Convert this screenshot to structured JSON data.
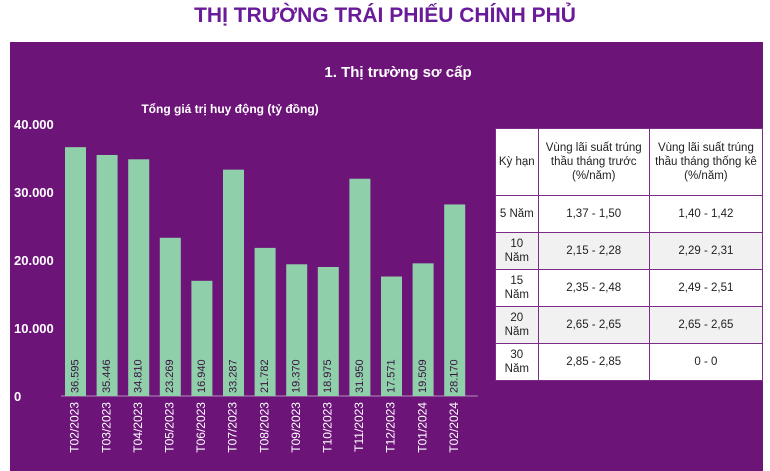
{
  "page_title": "THỊ TRƯỜNG TRÁI PHIẾU CHÍNH PHỦ",
  "section_title": "1. Thị trường sơ cấp",
  "colors": {
    "bar": "#8fcfaa",
    "panel": "#6d1479",
    "title": "#6a1b9a"
  },
  "chart_data": {
    "type": "bar",
    "title": "Tổng giá trị huy động (tỷ đồng)",
    "categories": [
      "T02/2023",
      "T03/2023",
      "T04/2023",
      "T05/2023",
      "T06/2023",
      "T07/2023",
      "T08/2023",
      "T09/2023",
      "T10/2023",
      "T11/2023",
      "T12/2023",
      "T01/2024",
      "T02/2024"
    ],
    "values": [
      36595,
      35446,
      34810,
      23269,
      16940,
      33287,
      21782,
      19370,
      18975,
      31950,
      17571,
      19509,
      28170
    ],
    "value_labels": [
      "36.595",
      "35.446",
      "34.810",
      "23.269",
      "16.940",
      "33.287",
      "21.782",
      "19.370",
      "18.975",
      "31.950",
      "17.571",
      "19.509",
      "28.170"
    ],
    "ylim": [
      0,
      40000
    ],
    "yticks": [
      0,
      10000,
      20000,
      30000,
      40000
    ],
    "ytick_labels": [
      "0",
      "10.000",
      "20.000",
      "30.000",
      "40.000"
    ],
    "grid": false
  },
  "table": {
    "headers": [
      "Kỳ hạn",
      "Vùng lãi suất trúng thầu tháng trước (%/năm)",
      "Vùng lãi suất trúng thầu tháng thống kê (%/năm)"
    ],
    "rows": [
      [
        "5 Năm",
        "1,37 - 1,50",
        "1,40 - 1,42"
      ],
      [
        "10 Năm",
        "2,15 - 2,28",
        "2,29 - 2,31"
      ],
      [
        "15 Năm",
        "2,35 - 2,48",
        "2,49 - 2,51"
      ],
      [
        "20 Năm",
        "2,65 - 2,65",
        "2,65 - 2,65"
      ],
      [
        "30 Năm",
        "2,85 - 2,85",
        "0 - 0"
      ]
    ]
  }
}
